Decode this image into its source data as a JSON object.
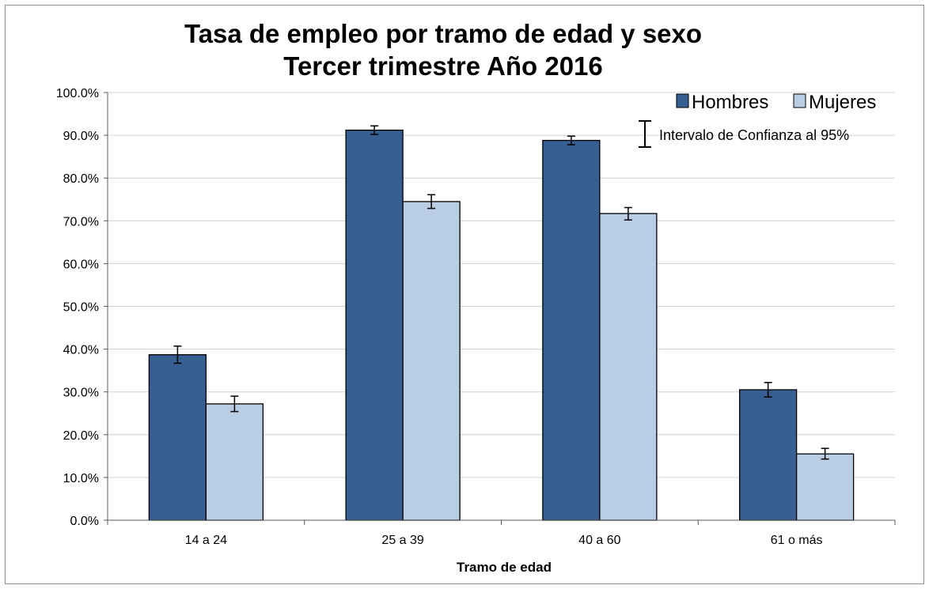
{
  "colors": {
    "hombres": "#375f91",
    "mujeres": "#b9cde5",
    "gridline": "#d0d0d0",
    "axis": "#595959"
  },
  "chart_data": {
    "type": "bar",
    "title": "Tasa de empleo por tramo de edad y sexo",
    "subtitle": "Tercer trimestre Año 2016",
    "xlabel": "Tramo de edad",
    "ylabel": "",
    "ylim": [
      0,
      100
    ],
    "y_ticks": [
      "0.0%",
      "10.0%",
      "20.0%",
      "30.0%",
      "40.0%",
      "50.0%",
      "60.0%",
      "70.0%",
      "80.0%",
      "90.0%",
      "100.0%"
    ],
    "categories": [
      "14 a 24",
      "25 a 39",
      "40 a 60",
      "61 o más"
    ],
    "series": [
      {
        "name": "Hombres",
        "values": [
          38.7,
          91.2,
          88.8,
          30.5
        ],
        "ci_low": [
          36.7,
          90.2,
          87.8,
          28.8
        ],
        "ci_high": [
          40.7,
          92.2,
          89.8,
          32.2
        ]
      },
      {
        "name": "Mujeres",
        "values": [
          27.2,
          74.5,
          71.7,
          15.5
        ],
        "ci_low": [
          25.4,
          72.9,
          70.2,
          14.3
        ],
        "ci_high": [
          29.0,
          76.1,
          73.1,
          16.8
        ]
      }
    ],
    "legend_position": "top-right",
    "error_bar_label": "Intervalo de Confianza al 95%",
    "grid": true
  }
}
